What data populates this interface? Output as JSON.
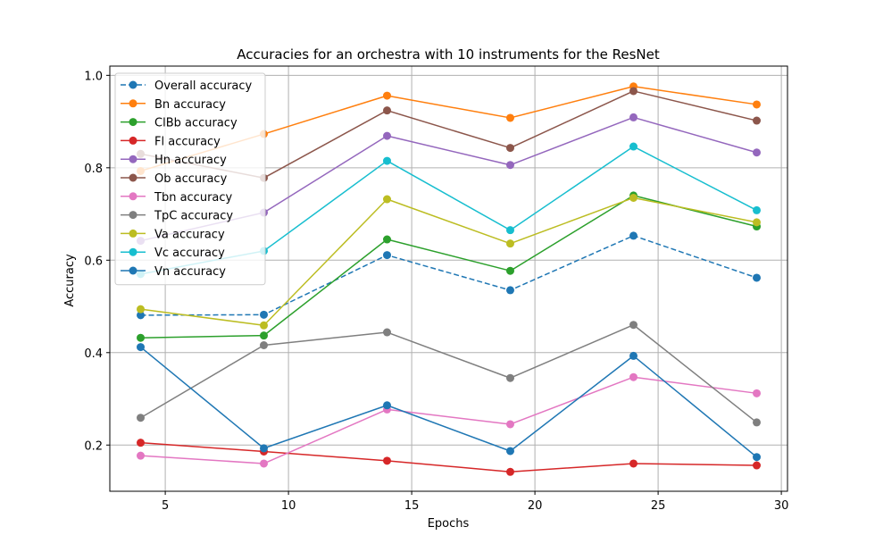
{
  "chart_data": {
    "type": "line",
    "title": "Accuracies for an orchestra with 10 instruments for the ResNet",
    "xlabel": "Epochs",
    "ylabel": "Accuracy",
    "x": [
      4,
      9,
      14,
      19,
      24,
      29
    ],
    "xlim": [
      2.75,
      30.25
    ],
    "ylim": [
      0.1,
      1.02
    ],
    "xticks": [
      5,
      10,
      15,
      20,
      25,
      30
    ],
    "xtick_labels": [
      "5",
      "10",
      "15",
      "20",
      "25",
      "30"
    ],
    "yticks": [
      0.2,
      0.4,
      0.6,
      0.8,
      1.0
    ],
    "ytick_labels": [
      "0.2",
      "0.4",
      "0.6",
      "0.8",
      "1.0"
    ],
    "grid": true,
    "legend_position": "top-left",
    "series": [
      {
        "name": "Overall accuracy",
        "color": "#1f77b4",
        "dashed": true,
        "values": [
          0.481,
          0.482,
          0.611,
          0.535,
          0.653,
          0.562
        ]
      },
      {
        "name": "Bn accuracy",
        "color": "#ff7f0e",
        "dashed": false,
        "values": [
          0.793,
          0.873,
          0.956,
          0.908,
          0.976,
          0.937
        ]
      },
      {
        "name": "ClBb accuracy",
        "color": "#2ca02c",
        "dashed": false,
        "values": [
          0.432,
          0.437,
          0.645,
          0.577,
          0.74,
          0.673
        ]
      },
      {
        "name": "Fl accuracy",
        "color": "#d62728",
        "dashed": false,
        "values": [
          0.205,
          0.186,
          0.166,
          0.142,
          0.16,
          0.156
        ]
      },
      {
        "name": "Hn accuracy",
        "color": "#9467bd",
        "dashed": false,
        "values": [
          0.642,
          0.703,
          0.869,
          0.806,
          0.909,
          0.833
        ]
      },
      {
        "name": "Ob accuracy",
        "color": "#8c564b",
        "dashed": false,
        "values": [
          0.83,
          0.778,
          0.924,
          0.843,
          0.966,
          0.902
        ]
      },
      {
        "name": "Tbn accuracy",
        "color": "#e377c2",
        "dashed": false,
        "values": [
          0.177,
          0.16,
          0.277,
          0.245,
          0.347,
          0.312
        ]
      },
      {
        "name": "TpC accuracy",
        "color": "#7f7f7f",
        "dashed": false,
        "values": [
          0.259,
          0.416,
          0.444,
          0.345,
          0.46,
          0.249
        ]
      },
      {
        "name": "Va accuracy",
        "color": "#bcbd22",
        "dashed": false,
        "values": [
          0.494,
          0.459,
          0.732,
          0.636,
          0.735,
          0.682
        ]
      },
      {
        "name": "Vc accuracy",
        "color": "#17becf",
        "dashed": false,
        "values": [
          0.57,
          0.62,
          0.815,
          0.665,
          0.846,
          0.708
        ]
      },
      {
        "name": "Vn accuracy",
        "color": "#1f77b4",
        "dashed": false,
        "values": [
          0.412,
          0.193,
          0.286,
          0.187,
          0.393,
          0.174
        ]
      }
    ]
  }
}
